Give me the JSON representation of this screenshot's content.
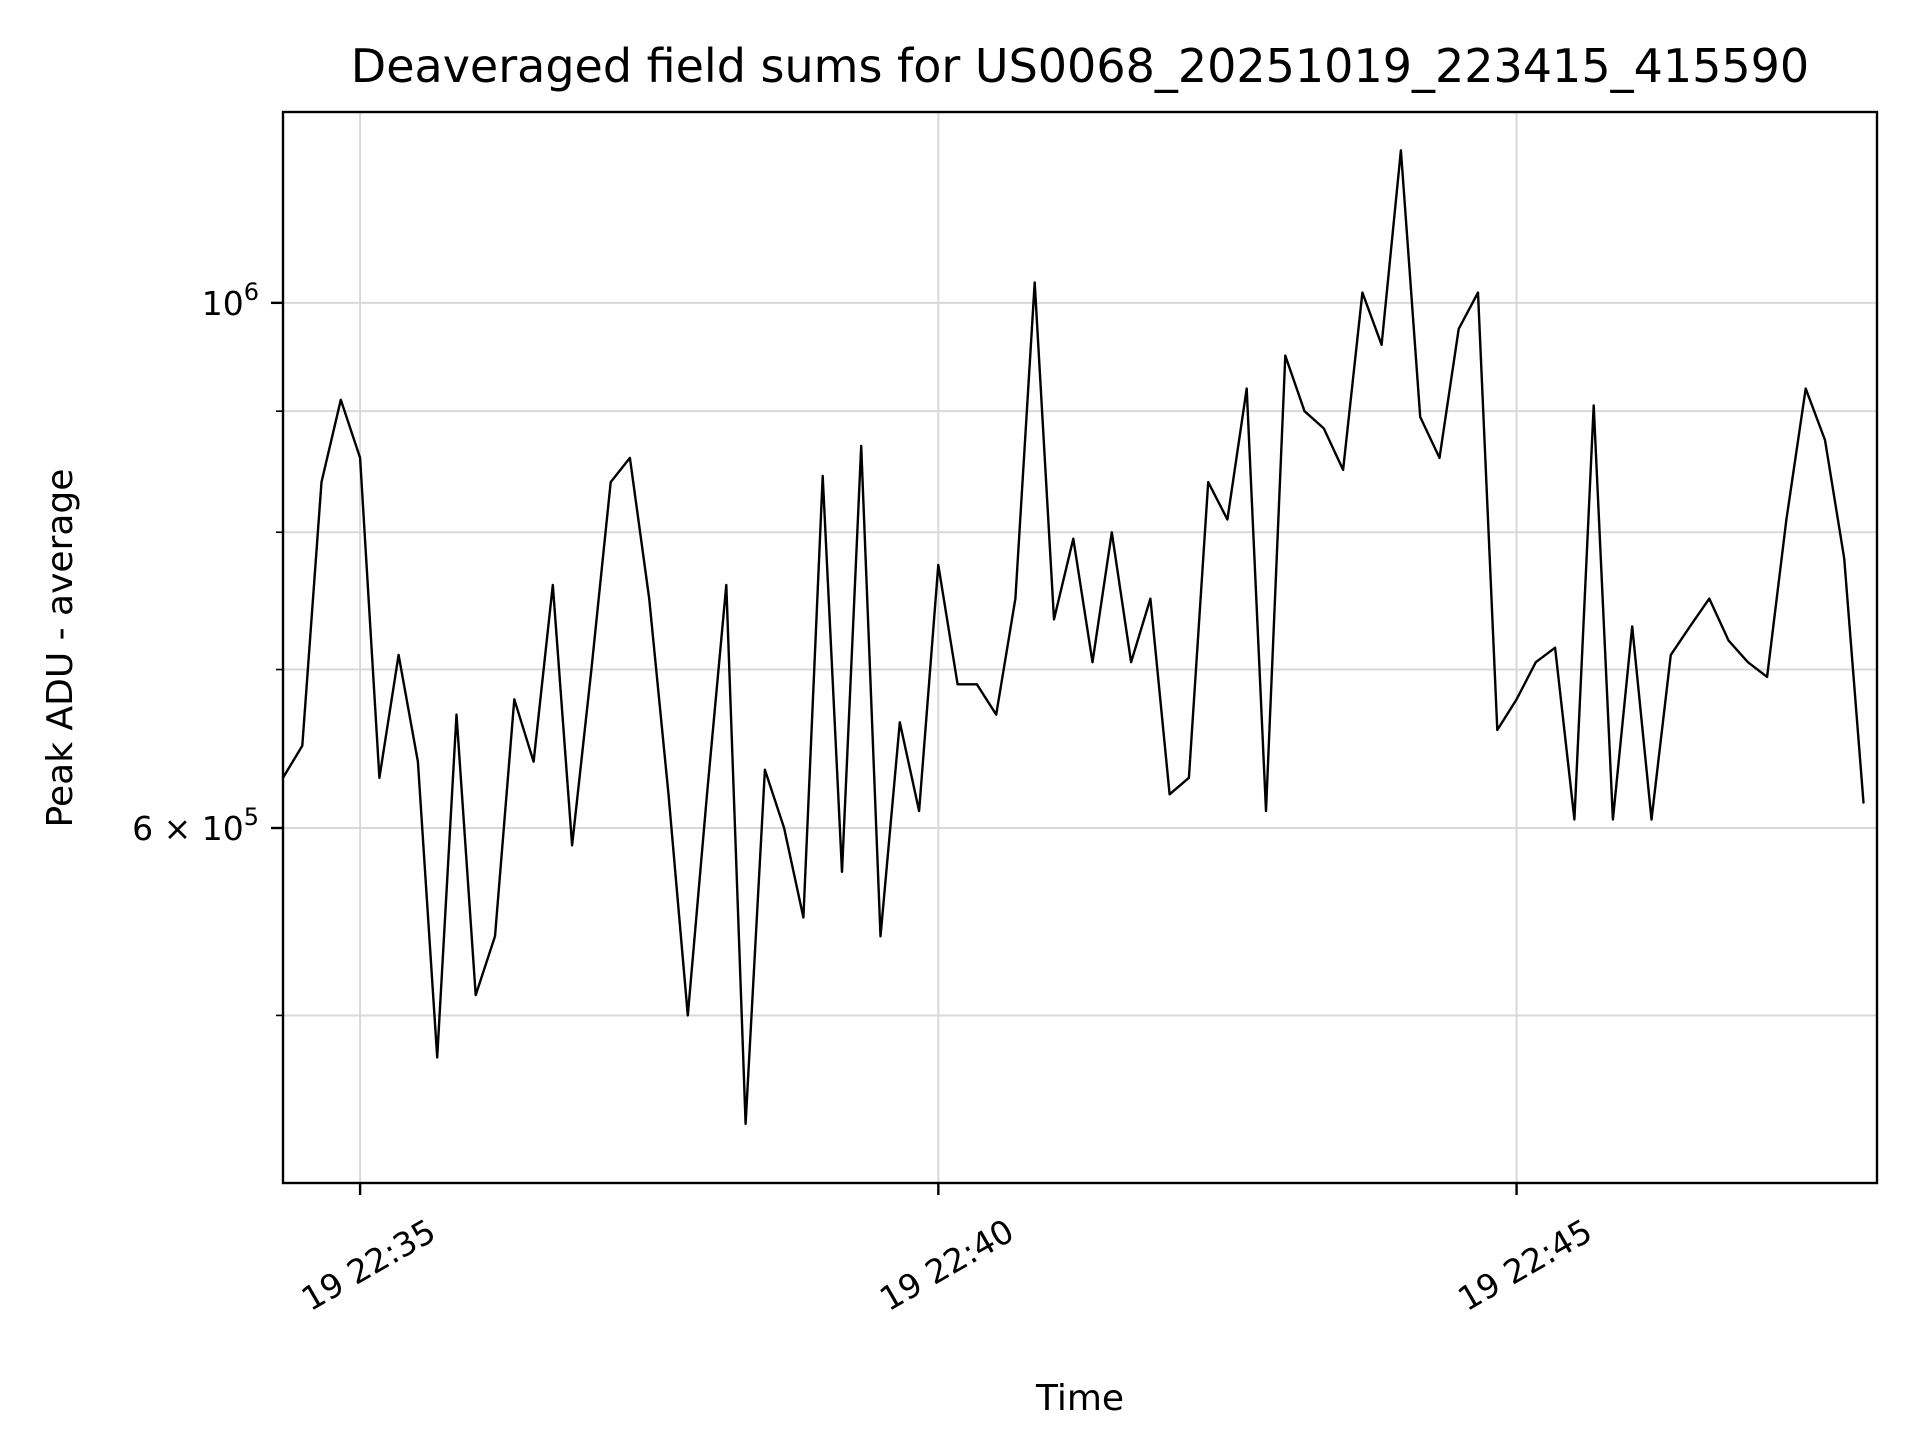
{
  "page": {
    "background_color": "#ffffff"
  },
  "chart_data": {
    "type": "line",
    "title": "Deaveraged field sums for US0068_20251019_223415_415590",
    "xlabel": "Time",
    "ylabel": "Peak ADU - average",
    "yscale": "log",
    "ylim": [
      424800,
      1204000
    ],
    "xlim_seconds": [
      0,
      827
    ],
    "grid": true,
    "grid_color": "#d9d9d9",
    "line_color": "#000000",
    "spine_color": "#000000",
    "x_step_seconds": 10,
    "x_ticks": [
      {
        "label": "19 22:35",
        "t": 40
      },
      {
        "label": "19 22:40",
        "t": 340
      },
      {
        "label": "19 22:45",
        "t": 640
      }
    ],
    "y_major_ticks": [
      {
        "value": 1000000,
        "base": "10",
        "exp": "6"
      },
      {
        "value": 600000,
        "base": "6 × 10",
        "exp": "5"
      }
    ],
    "y_minor_ticks": [
      900000,
      800000,
      700000,
      500000
    ],
    "values": [
      630000,
      650000,
      840000,
      910000,
      860000,
      630000,
      710000,
      640000,
      480000,
      670000,
      510000,
      540000,
      680000,
      640000,
      760000,
      590000,
      700000,
      840000,
      860000,
      750000,
      620000,
      500000,
      620000,
      760000,
      450000,
      635000,
      600000,
      550000,
      845000,
      575000,
      870000,
      540000,
      665000,
      610000,
      775000,
      690000,
      690000,
      670000,
      750000,
      1020000,
      735000,
      795000,
      705000,
      800000,
      705000,
      750000,
      620000,
      630000,
      840000,
      810000,
      920000,
      610000,
      950000,
      900000,
      885000,
      850000,
      1010000,
      960000,
      1160000,
      895000,
      860000,
      975000,
      1010000,
      660000,
      680000,
      705000,
      715000,
      605000,
      905000,
      605000,
      730000,
      605000,
      710000,
      730000,
      750000,
      720000,
      705000,
      695000,
      810000,
      920000,
      875000,
      780000,
      615000
    ]
  }
}
